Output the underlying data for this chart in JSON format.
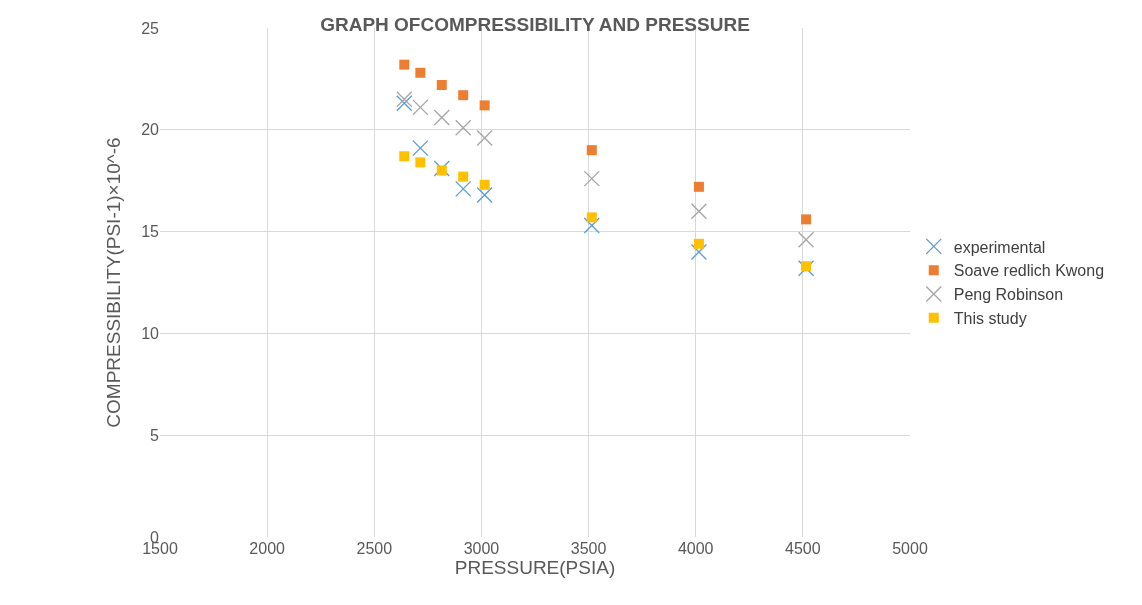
{
  "chart_data": {
    "type": "scatter",
    "title": "GRAPH OFCOMPRESSIBILITY AND PRESSURE",
    "xlabel": "PRESSURE(PSIA)",
    "ylabel": "COMPRESSIBILITY(PSI-1)×10^-6",
    "x": [
      2640,
      2715,
      2815,
      2915,
      3015,
      3515,
      4015,
      4515
    ],
    "series": [
      {
        "name": "experimental",
        "color": "#5b9bd5",
        "marker": "cross",
        "values": [
          21.3,
          19.1,
          18.1,
          17.1,
          16.8,
          15.3,
          14.0,
          13.2
        ]
      },
      {
        "name": "Soave redlich Kwong",
        "color": "#ed7d31",
        "marker": "square",
        "values": [
          23.2,
          22.8,
          22.2,
          21.7,
          21.2,
          19.0,
          17.2,
          15.6
        ]
      },
      {
        "name": "Peng Robinson",
        "color": "#a5a5a5",
        "marker": "cross",
        "values": [
          21.5,
          21.1,
          20.6,
          20.1,
          19.6,
          17.6,
          16.0,
          14.6
        ]
      },
      {
        "name": "This study",
        "color": "#ffc000",
        "marker": "square",
        "values": [
          18.7,
          18.4,
          18.0,
          17.7,
          17.3,
          15.7,
          14.4,
          13.3
        ]
      }
    ],
    "xlim": [
      1500,
      5000
    ],
    "xticks": [
      1500,
      2000,
      2500,
      3000,
      3500,
      4000,
      4500,
      5000
    ],
    "ylim": [
      0,
      25
    ],
    "yticks": [
      0,
      5,
      10,
      15,
      20,
      25
    ],
    "grid": true,
    "legend": "right"
  }
}
